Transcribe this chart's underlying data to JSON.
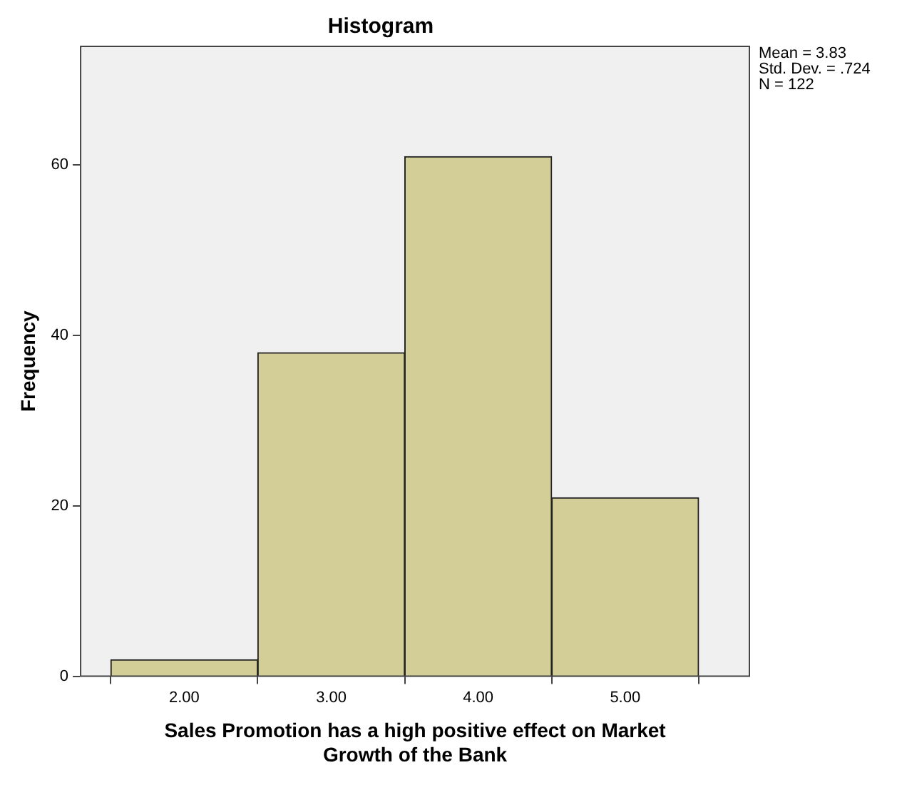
{
  "chart_data": {
    "type": "histogram",
    "title": "Histogram",
    "xlabel": "Sales Promotion has a high positive effect on Market Growth of the Bank",
    "ylabel": "Frequency",
    "bins": [
      1.5,
      2.5,
      3.5,
      4.5,
      5.5
    ],
    "values": [
      2,
      38,
      61,
      21
    ],
    "color": "#d3ce97",
    "xlim": [
      1.29,
      5.85
    ],
    "xticks": [
      {
        "value": 2,
        "label": "2.00"
      },
      {
        "value": 3,
        "label": "3.00"
      },
      {
        "value": 4,
        "label": "4.00"
      },
      {
        "value": 5,
        "label": "5.00"
      }
    ],
    "ylim": [
      0,
      74
    ],
    "yticks": [
      0,
      20,
      40,
      60
    ],
    "grid": false,
    "legend": false,
    "annotations": [
      "Mean = 3.83",
      "Std. Dev. = .724",
      "N = 122"
    ]
  }
}
